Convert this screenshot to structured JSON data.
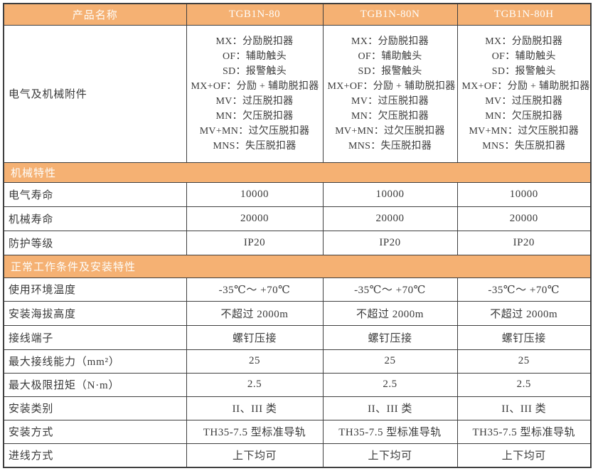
{
  "colors": {
    "band_bg": "#f5b173",
    "band_text": "#fdfdfb",
    "border": "#3f3f3f",
    "body_text": "#3a3a3a"
  },
  "header": {
    "label": "产品名称",
    "products": [
      "TGB1N-80",
      "TGB1N-80N",
      "TGB1N-80H"
    ]
  },
  "attachments": {
    "label": "电气及机械附件",
    "lines": [
      "MX：分励脱扣器",
      "OF：辅助触头",
      "SD：报警触头",
      "MX+OF：分励 + 辅助脱扣器",
      "MV：过压脱扣器",
      "MN：欠压脱扣器",
      "MV+MN：过欠压脱扣器",
      "MNS：失压脱扣器"
    ]
  },
  "sections": [
    {
      "title": "机械特性",
      "rows": [
        {
          "label": "电气寿命",
          "values": [
            "10000",
            "10000",
            "10000"
          ]
        },
        {
          "label": "机械寿命",
          "values": [
            "20000",
            "20000",
            "20000"
          ]
        },
        {
          "label": "防护等级",
          "values": [
            "IP20",
            "IP20",
            "IP20"
          ]
        }
      ]
    },
    {
      "title": "正常工作条件及安装特性",
      "rows": [
        {
          "label": "使用环境温度",
          "values": [
            "-35℃～ +70℃",
            "-35℃～ +70℃",
            "-35℃～ +70℃"
          ]
        },
        {
          "label": "安装海拔高度",
          "values": [
            "不超过 2000m",
            "不超过 2000m",
            "不超过 2000m"
          ]
        },
        {
          "label": "接线端子",
          "values": [
            "螺钉压接",
            "螺钉压接",
            "螺钉压接"
          ]
        },
        {
          "label": "最大接线能力（mm²）",
          "values": [
            "25",
            "25",
            "25"
          ]
        },
        {
          "label": "最大极限扭矩（N·m）",
          "values": [
            "2.5",
            "2.5",
            "2.5"
          ]
        },
        {
          "label": "安装类别",
          "values": [
            "II、III 类",
            "II、III 类",
            "II、III 类"
          ]
        },
        {
          "label": "安装方式",
          "values": [
            "TH35-7.5 型标准导轨",
            "TH35-7.5 型标准导轨",
            "TH35-7.5 型标准导轨"
          ]
        },
        {
          "label": "进线方式",
          "values": [
            "上下均可",
            "上下均可",
            "上下均可"
          ]
        }
      ]
    }
  ]
}
